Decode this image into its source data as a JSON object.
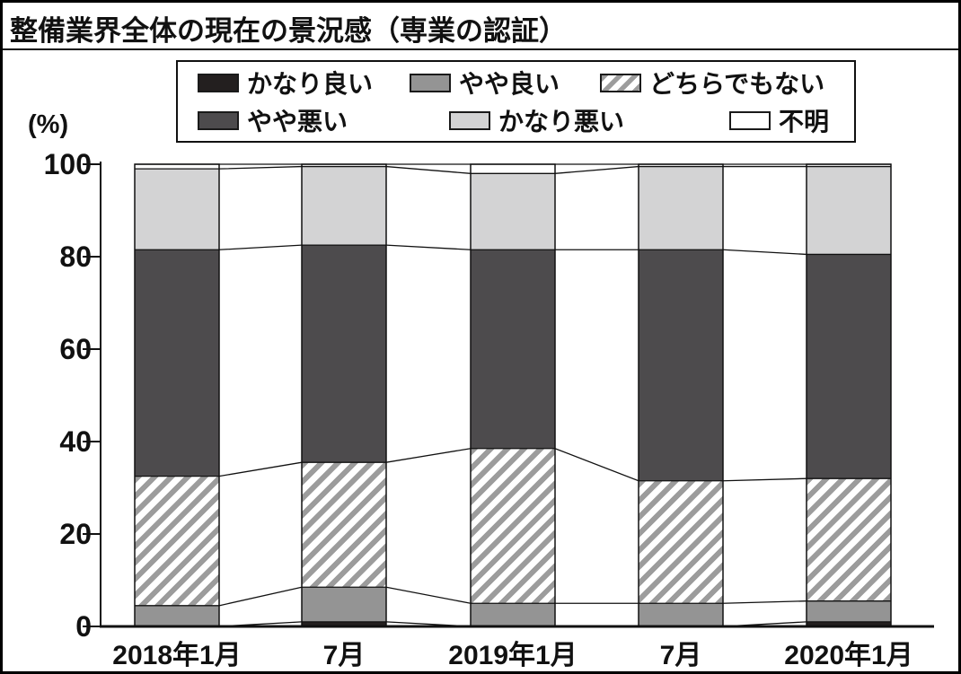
{
  "title": "整備業界全体の現在の景況感（専業の認証）",
  "legend": {
    "items": [
      {
        "label": "かなり良い",
        "style": "black",
        "swatch_class": "swatch sw-black"
      },
      {
        "label": "やや良い",
        "style": "gray",
        "swatch_class": "swatch sw-gray"
      },
      {
        "label": "どちらでもない",
        "style": "hatch",
        "swatch_class": "swatch sw-hatch"
      },
      {
        "label": "やや悪い",
        "style": "dark",
        "swatch_class": "swatch sw-dark"
      },
      {
        "label": "かなり悪い",
        "style": "light",
        "swatch_class": "swatch sw-light"
      },
      {
        "label": "不明",
        "style": "white",
        "swatch_class": "swatch sw-white"
      }
    ]
  },
  "colors": {
    "kanari_yoi": "#231f1f",
    "yaya_yoi": "#949494",
    "dochirademonai_stripe": "#9c9c9c",
    "yaya_warui": "#4d4b4d",
    "kanari_warui": "#d3d3d4",
    "fumei": "#ffffff",
    "line": "#111111"
  },
  "chart_data": {
    "type": "bar",
    "stacked": true,
    "title": "整備業界全体の現在の景況感（専業の認証）",
    "categories": [
      "2018年1月",
      "7月",
      "2019年1月",
      "7月",
      "2020年1月"
    ],
    "series": [
      {
        "name": "かなり良い",
        "style": "black",
        "values": [
          0,
          1,
          0,
          0,
          1
        ]
      },
      {
        "name": "やや良い",
        "style": "gray",
        "values": [
          4.5,
          7.5,
          5,
          5,
          4.5
        ]
      },
      {
        "name": "どちらでもない",
        "style": "hatch",
        "values": [
          28,
          27,
          33.5,
          26.5,
          26.5
        ]
      },
      {
        "name": "やや悪い",
        "style": "dark",
        "values": [
          49,
          47,
          43,
          50,
          48.5
        ]
      },
      {
        "name": "かなり悪い",
        "style": "light",
        "values": [
          17.5,
          17,
          16.5,
          18,
          19
        ]
      },
      {
        "name": "不明",
        "style": "white",
        "values": [
          1,
          0.5,
          2,
          0.5,
          0.5
        ]
      }
    ],
    "xlabel": "",
    "ylabel": "(%)",
    "ylim": [
      0,
      100
    ],
    "yticks": [
      0,
      20,
      40,
      60,
      80,
      100
    ],
    "grid": false,
    "legend_position": "top"
  }
}
